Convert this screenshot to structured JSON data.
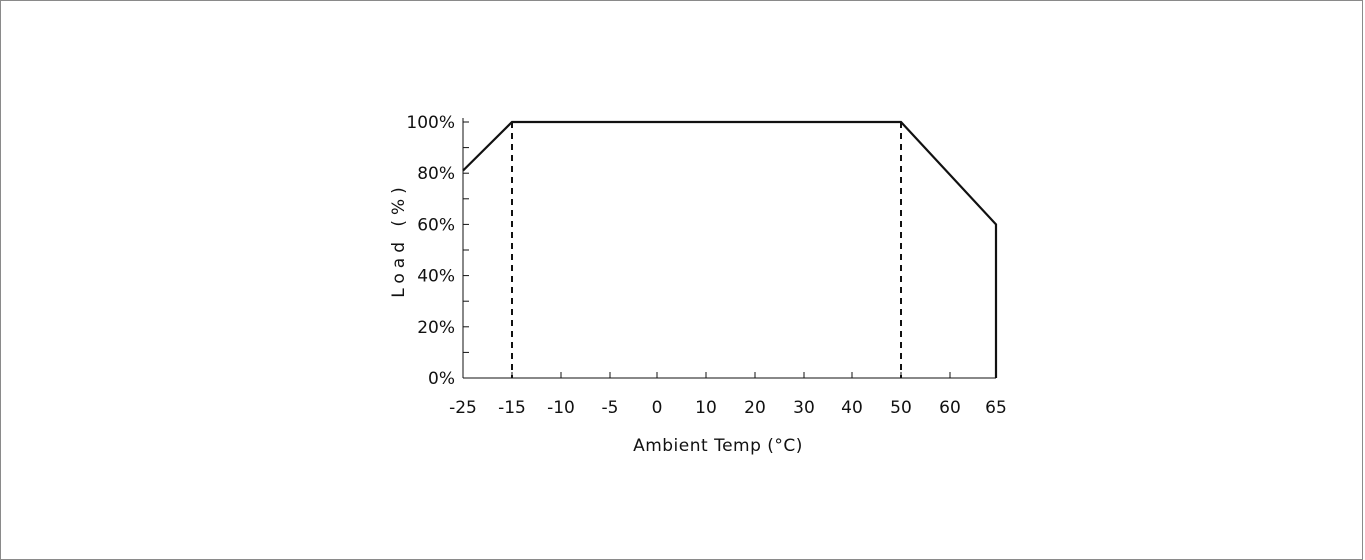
{
  "chart_data": {
    "type": "line",
    "title": "",
    "xlabel": "Ambient Temp (°C)",
    "ylabel": "Load (%)",
    "x_ticks": [
      "-25",
      "-15",
      "-10",
      "-5",
      "0",
      "10",
      "20",
      "30",
      "40",
      "50",
      "60",
      "65"
    ],
    "y_ticks": [
      "0%",
      "20%",
      "40%",
      "60%",
      "80%",
      "100%"
    ],
    "y_minor_ticks": [
      10,
      30,
      50,
      70,
      90
    ],
    "ylim": [
      0,
      100
    ],
    "grid": false,
    "series": [
      {
        "points": [
          {
            "x": "-25",
            "y": 81
          },
          {
            "x": "-15",
            "y": 100
          },
          {
            "x": "50",
            "y": 100
          },
          {
            "x": "65",
            "y": 60
          },
          {
            "x": "65",
            "y": 0
          }
        ]
      }
    ],
    "reference_lines": [
      {
        "x": "-15",
        "style": "dashed"
      },
      {
        "x": "50",
        "style": "dashed"
      }
    ],
    "colors": {
      "line": "#111111",
      "frame": "#8a8a8a"
    }
  }
}
